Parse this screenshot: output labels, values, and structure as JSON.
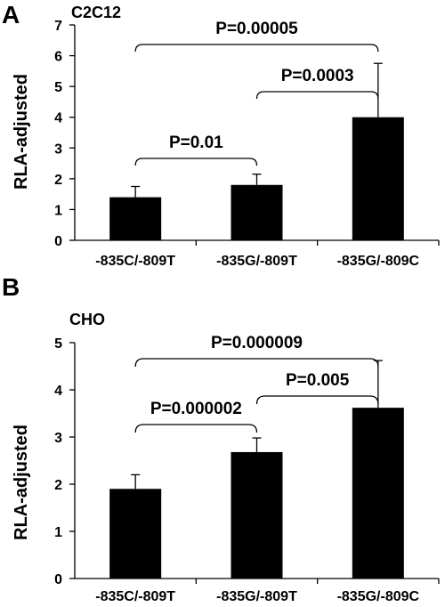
{
  "chart_data": [
    {
      "type": "bar",
      "panel": "A",
      "title": "C2C12",
      "ylabel": "RLA-adjusted",
      "ylim": [
        0,
        7
      ],
      "yticks": [
        "0",
        "1",
        "2",
        "3",
        "4",
        "5",
        "6",
        "7"
      ],
      "categories": [
        "-835C/-809T",
        "-835G/-809T",
        "-835G/-809C"
      ],
      "values": [
        1.4,
        1.8,
        4.0
      ],
      "errors": [
        0.35,
        0.35,
        1.75
      ],
      "bar_color": "#000000",
      "comparisons": [
        {
          "from": 0,
          "to": 1,
          "label": "P=0.01"
        },
        {
          "from": 1,
          "to": 2,
          "label": "P=0.0003"
        },
        {
          "from": 0,
          "to": 2,
          "label": "P=0.00005"
        }
      ]
    },
    {
      "type": "bar",
      "panel": "B",
      "title": "CHO",
      "ylabel": "RLA-adjusted",
      "ylim": [
        0,
        5
      ],
      "yticks": [
        "0",
        "1",
        "2",
        "3",
        "4",
        "5"
      ],
      "categories": [
        "-835C/-809T",
        "-835G/-809T",
        "-835G/-809C"
      ],
      "values": [
        1.9,
        2.68,
        3.62
      ],
      "errors": [
        0.3,
        0.3,
        1.0
      ],
      "bar_color": "#000000",
      "comparisons": [
        {
          "from": 0,
          "to": 1,
          "label": "P=0.000002"
        },
        {
          "from": 1,
          "to": 2,
          "label": "P=0.005"
        },
        {
          "from": 0,
          "to": 2,
          "label": "P=0.000009"
        }
      ]
    }
  ]
}
